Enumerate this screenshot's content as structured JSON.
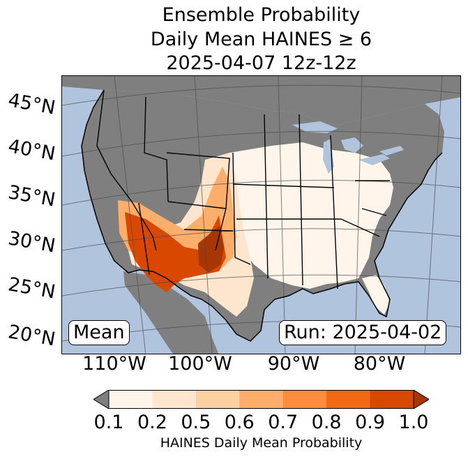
{
  "title": {
    "line1": "Ensemble Probability",
    "line2": "Daily Mean HAINES ≥ 6",
    "line3": "2025-04-07 12z-12z"
  },
  "map": {
    "ocean_color": "#b0c4de",
    "land_low_color": "#7f7f7f",
    "lat_labels": [
      "45°N",
      "40°N",
      "35°N",
      "30°N",
      "25°N",
      "20°N"
    ],
    "lon_labels": [
      "110°W",
      "100°W",
      "90°W",
      "80°W"
    ],
    "stat_label": "Mean",
    "run_label": "Run: 2025-04-02"
  },
  "colorbar": {
    "under_color": "#7f7f7f",
    "colors": [
      "#fff5eb",
      "#fee6ce",
      "#fdd0a2",
      "#fdae6b",
      "#fd8d3c",
      "#f16913",
      "#d94801",
      "#a63603"
    ],
    "ticks": [
      "0.1",
      "0.2",
      "0.5",
      "0.6",
      "0.7",
      "0.8",
      "0.9",
      "1.0"
    ],
    "label": "HAINES Daily Mean Probability"
  }
}
